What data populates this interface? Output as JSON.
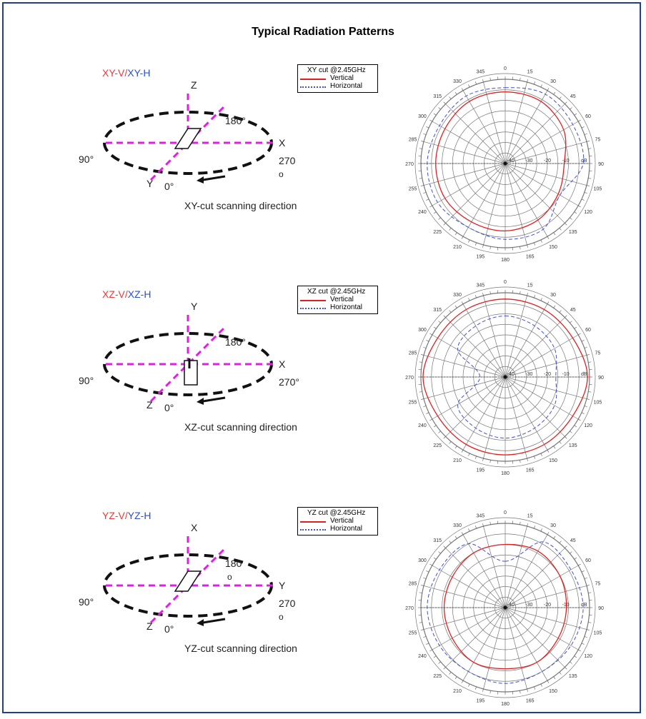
{
  "title": "Typical Radiation Patterns",
  "sections": [
    {
      "label_v": "XY-V",
      "label_sep": "/",
      "label_h": "XY-H",
      "legend_title": "XY cut @2.45GHz",
      "legend_v": "Vertical",
      "legend_h": "Horizontal",
      "axis_up": "Z",
      "axis_right": "X",
      "axis_diag": "Y",
      "angle_180": "180°",
      "angle_270": "270",
      "angle_270b": "o",
      "angle_90": "90°",
      "angle_0": "0°",
      "scan": "XY-cut scanning direction"
    },
    {
      "label_v": "XZ-V",
      "label_sep": "/",
      "label_h": "XZ-H",
      "legend_title": "XZ cut @2.45GHz",
      "legend_v": "Vertical",
      "legend_h": "Horizontal",
      "axis_up": "Y",
      "axis_right": "X",
      "axis_diag": "Z",
      "angle_180": "180°",
      "angle_270": "270°",
      "angle_270b": "",
      "angle_90": "90°",
      "angle_0": "0°",
      "scan": "XZ-cut scanning direction"
    },
    {
      "label_v": "YZ-V",
      "label_sep": "/",
      "label_h": "YZ-H",
      "legend_title": "YZ cut @2.45GHz",
      "legend_v": "Vertical",
      "legend_h": "Horizontal",
      "axis_up": "X",
      "axis_right": "Y",
      "axis_diag": "Z",
      "angle_180": "180",
      "angle_180b": "o",
      "angle_270": "270",
      "angle_270b": "o",
      "angle_90": "90°",
      "angle_0": "0°",
      "scan": "YZ-cut scanning direction"
    }
  ],
  "colors": {
    "vertical": "#e02020",
    "horizontal": "#4050d0",
    "axis": "#e020e0",
    "frame": "#1f3f8f"
  },
  "chart_data": [
    {
      "type": "polar-line",
      "title": "XY cut @2.45GHz",
      "angle_ticks": [
        "0",
        "15",
        "30",
        "45",
        "60",
        "75",
        "90",
        "105",
        "120",
        "135",
        "150",
        "165",
        "180",
        "195",
        "210",
        "225",
        "240",
        "255",
        "270",
        "285",
        "300",
        "315",
        "330",
        "345"
      ],
      "radial_ticks": [
        "-40",
        "-30",
        "-20",
        "-10",
        "dB"
      ],
      "rlim": [
        -40,
        0
      ],
      "theta_deg": [
        0,
        30,
        60,
        90,
        120,
        150,
        180,
        210,
        240,
        270,
        300,
        330
      ],
      "series": [
        {
          "name": "Vertical",
          "values": [
            -6,
            -6,
            -8,
            -12,
            -11,
            -9,
            -8,
            -8,
            -7,
            -7,
            -7,
            -6
          ]
        },
        {
          "name": "Horizontal",
          "values": [
            -4,
            -2,
            -3,
            -3,
            -10,
            -4,
            -4,
            -5,
            -3,
            -3,
            -4,
            -3
          ]
        }
      ]
    },
    {
      "type": "polar-line",
      "title": "XZ cut @2.45GHz",
      "angle_ticks": [
        "0",
        "15",
        "30",
        "45",
        "60",
        "75",
        "90",
        "105",
        "120",
        "135",
        "150",
        "165",
        "180",
        "195",
        "210",
        "225",
        "240",
        "255",
        "270",
        "285",
        "300",
        "315",
        "330",
        "345"
      ],
      "radial_ticks": [
        "-40",
        "-30",
        "-20",
        "-10",
        "dB"
      ],
      "rlim": [
        -40,
        0
      ],
      "theta_deg": [
        0,
        30,
        60,
        90,
        120,
        150,
        180,
        210,
        240,
        270,
        300,
        330
      ],
      "series": [
        {
          "name": "Vertical",
          "values": [
            -3,
            -3,
            -3,
            -1,
            -3,
            -3,
            -3,
            -3,
            -3,
            -1,
            -3,
            -3
          ]
        },
        {
          "name": "Horizontal",
          "values": [
            -11,
            -12,
            -13,
            -16,
            -13,
            -12,
            -11,
            -12,
            -14,
            -28,
            -14,
            -12
          ]
        }
      ]
    },
    {
      "type": "polar-line",
      "title": "YZ cut @2.45GHz",
      "angle_ticks": [
        "0",
        "15",
        "30",
        "45",
        "60",
        "75",
        "90",
        "105",
        "120",
        "135",
        "150",
        "165",
        "180",
        "195",
        "210",
        "225",
        "240",
        "255",
        "270",
        "285",
        "300",
        "315",
        "330",
        "345"
      ],
      "radial_ticks": [
        "-40",
        "-30",
        "-20",
        "-10",
        "dB"
      ],
      "rlim": [
        -40,
        0
      ],
      "theta_deg": [
        0,
        30,
        60,
        90,
        120,
        150,
        180,
        210,
        240,
        270,
        300,
        330
      ],
      "series": [
        {
          "name": "Vertical",
          "values": [
            -10,
            -9,
            -10,
            -11,
            -11,
            -10,
            -11,
            -10,
            -11,
            -11,
            -11,
            -10
          ]
        },
        {
          "name": "Horizontal",
          "values": [
            -18,
            -4,
            -4,
            -3,
            -4,
            -5,
            -4,
            -5,
            -4,
            -3,
            -4,
            -5
          ]
        }
      ]
    }
  ]
}
